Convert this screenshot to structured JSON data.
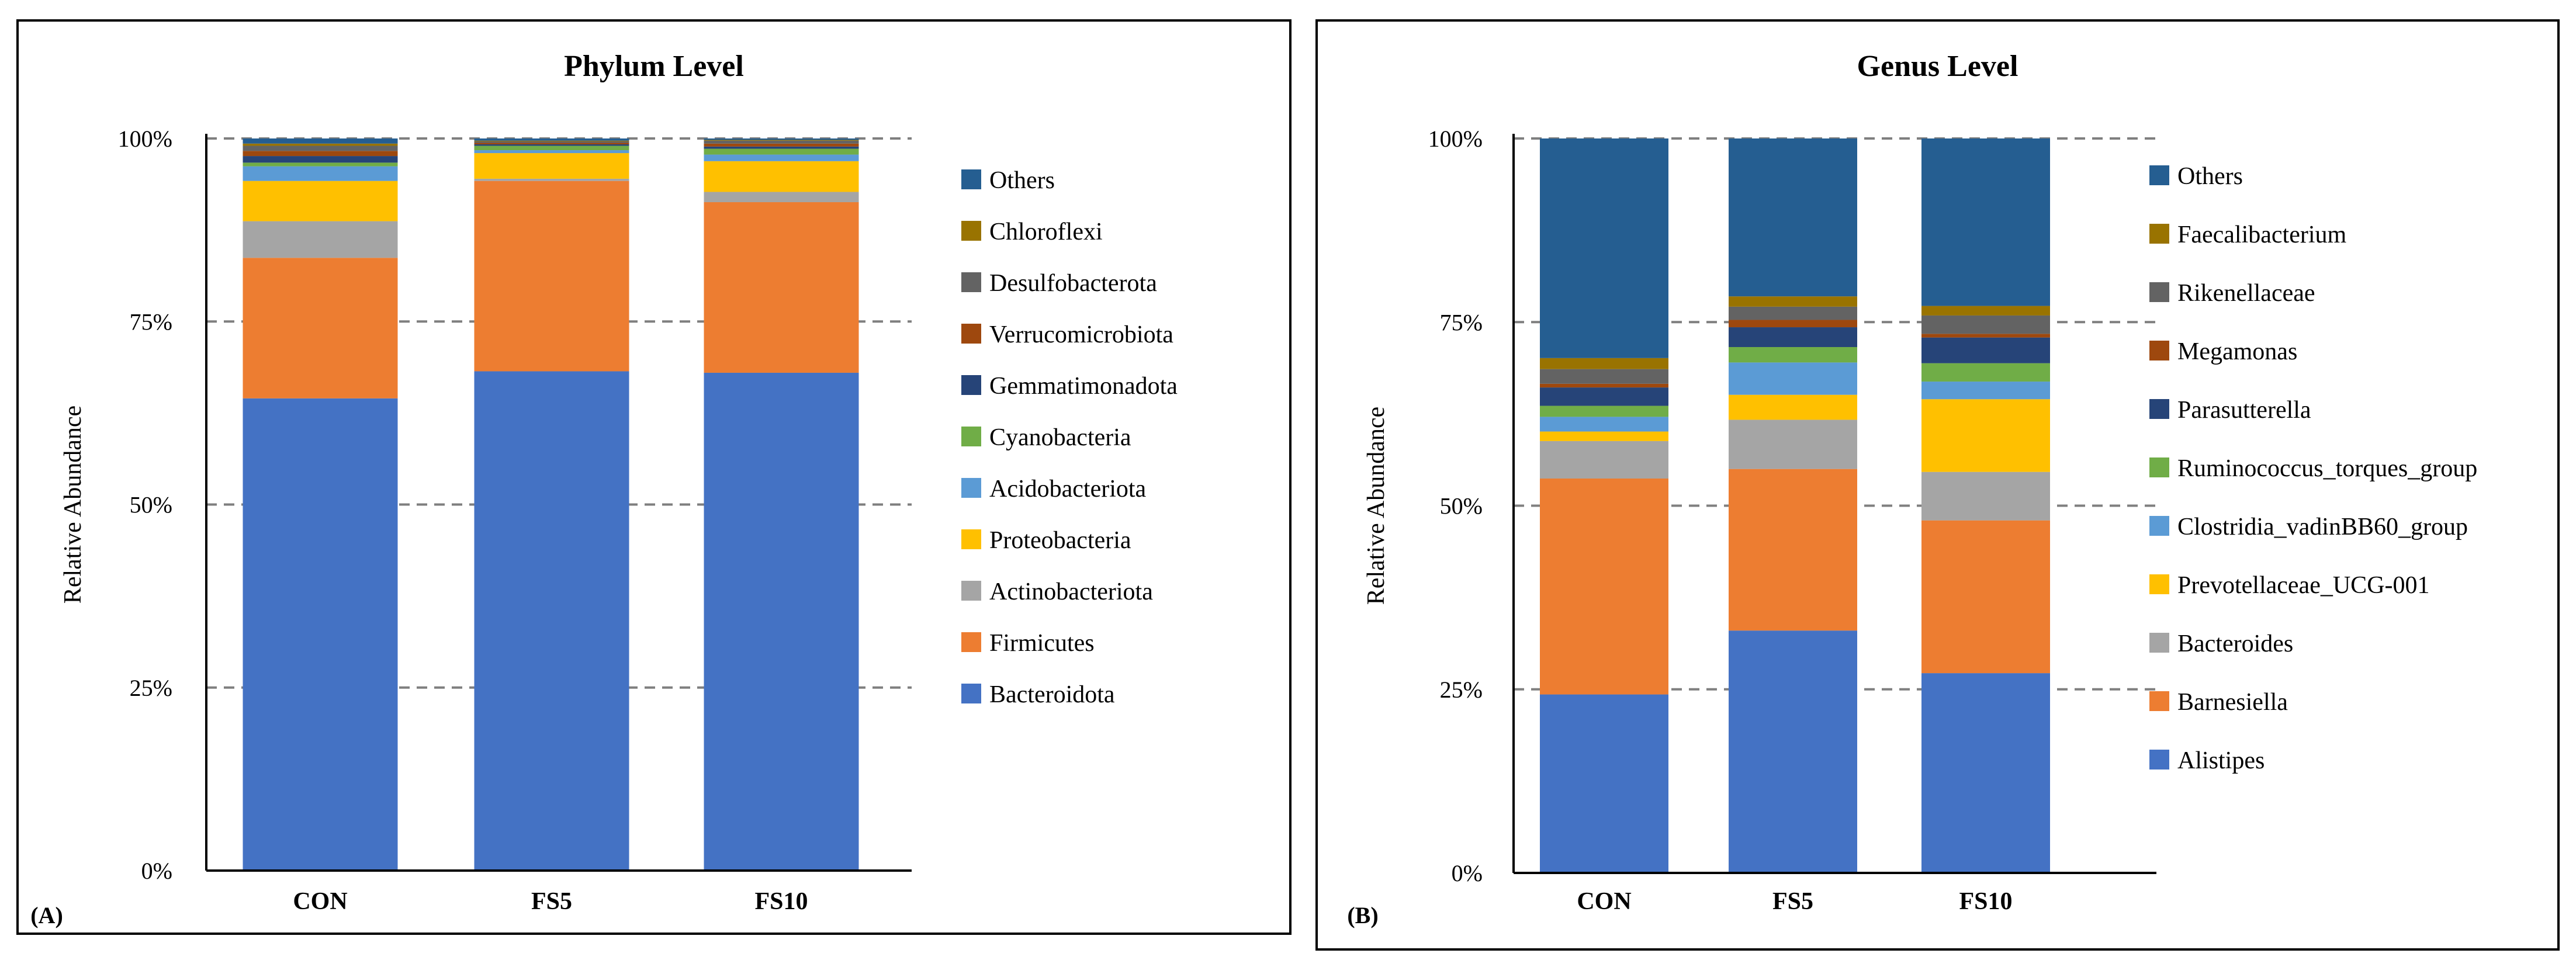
{
  "chart_data": [
    {
      "type": "bar",
      "stacked": true,
      "panel_label": "(A)",
      "title": "Phylum Level",
      "xlabel": "",
      "ylabel": "Relative Abundance",
      "ylim": [
        0,
        100
      ],
      "yticks": [
        "0%",
        "25%",
        "50%",
        "75%",
        "100%"
      ],
      "categories": [
        "CON",
        "FS5",
        "FS10"
      ],
      "legend_position": "right",
      "series": [
        {
          "name": "Bacteroidota",
          "color": "#4472C4",
          "values": [
            64.5,
            68.2,
            68.0
          ]
        },
        {
          "name": "Firmicutes",
          "color": "#ED7D31",
          "values": [
            19.2,
            26.0,
            23.3
          ]
        },
        {
          "name": "Actinobacteriota",
          "color": "#A5A5A5",
          "values": [
            5.0,
            0.3,
            1.4
          ]
        },
        {
          "name": "Proteobacteria",
          "color": "#FFC000",
          "values": [
            5.5,
            3.5,
            4.2
          ]
        },
        {
          "name": "Acidobacteriota",
          "color": "#5B9BD5",
          "values": [
            2.0,
            0.4,
            0.9
          ]
        },
        {
          "name": "Cyanobacteria",
          "color": "#70AD47",
          "values": [
            0.5,
            0.6,
            0.8
          ]
        },
        {
          "name": "Gemmatimonadota",
          "color": "#264478",
          "values": [
            0.9,
            0.2,
            0.3
          ]
        },
        {
          "name": "Verrucomicrobiota",
          "color": "#9E480E",
          "values": [
            0.7,
            0.2,
            0.4
          ]
        },
        {
          "name": "Desulfobacterota",
          "color": "#636363",
          "values": [
            0.7,
            0.2,
            0.4
          ]
        },
        {
          "name": "Chloroflexi",
          "color": "#997300",
          "values": [
            0.3,
            0.1,
            0.1
          ]
        },
        {
          "name": "Others",
          "color": "#255E91",
          "values": [
            0.7,
            0.3,
            0.2
          ]
        }
      ]
    },
    {
      "type": "bar",
      "stacked": true,
      "panel_label": "(B)",
      "title": "Genus Level",
      "xlabel": "",
      "ylabel": "Relative Abundance",
      "ylim": [
        0,
        100
      ],
      "yticks": [
        "0%",
        "25%",
        "50%",
        "75%",
        "100%"
      ],
      "categories": [
        "CON",
        "FS5",
        "FS10"
      ],
      "legend_position": "right",
      "series": [
        {
          "name": "Alistipes",
          "color": "#4472C4",
          "values": [
            24.3,
            33.0,
            27.2
          ]
        },
        {
          "name": "Barnesiella",
          "color": "#ED7D31",
          "values": [
            29.4,
            22.0,
            20.8
          ]
        },
        {
          "name": "Bacteroides",
          "color": "#A5A5A5",
          "values": [
            5.1,
            6.7,
            6.6
          ]
        },
        {
          "name": "Prevotellaceae_UCG-001",
          "color": "#FFC000",
          "values": [
            1.3,
            3.4,
            9.9
          ]
        },
        {
          "name": "Clostridia_vadinBB60_group",
          "color": "#5B9BD5",
          "values": [
            2.0,
            4.4,
            2.4
          ]
        },
        {
          "name": "Ruminococcus_torques_group",
          "color": "#70AD47",
          "values": [
            1.5,
            2.1,
            2.5
          ]
        },
        {
          "name": "Parasutterella",
          "color": "#264478",
          "values": [
            2.5,
            2.7,
            3.5
          ]
        },
        {
          "name": "Megamonas",
          "color": "#9E480E",
          "values": [
            0.5,
            1.0,
            0.5
          ]
        },
        {
          "name": "Rikenellaceae",
          "color": "#636363",
          "values": [
            2.0,
            1.8,
            2.5
          ]
        },
        {
          "name": "Faecalibacterium",
          "color": "#997300",
          "values": [
            1.5,
            1.4,
            1.3
          ]
        },
        {
          "name": "Others",
          "color": "#255E91",
          "values": [
            29.9,
            21.5,
            22.8
          ]
        }
      ]
    }
  ]
}
